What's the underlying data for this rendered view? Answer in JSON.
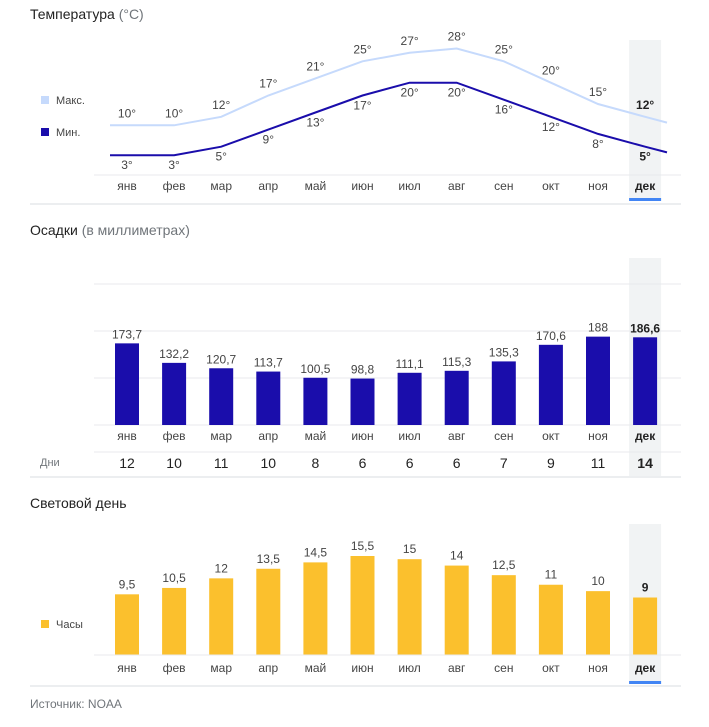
{
  "colors": {
    "max_line": "#c6dafc",
    "min_line": "#1a0dab",
    "precip_bar": "#1a0dab",
    "daylight_bar": "#fbc02d",
    "highlight_band": "#f1f3f4",
    "selected_underline": "#4285f4",
    "grid": "#e8eaed"
  },
  "selected_index": 11,
  "temperature": {
    "title": "Температура",
    "title_unit": "(°C)",
    "legend_max": "Макс.",
    "legend_min": "Мин."
  },
  "precipitation": {
    "title": "Осадки",
    "title_unit": "(в миллиметрах)",
    "days_label": "Дни",
    "days": [
      "12",
      "10",
      "11",
      "10",
      "8",
      "6",
      "6",
      "6",
      "7",
      "9",
      "11",
      "14"
    ]
  },
  "daylight": {
    "title": "Световой день",
    "legend": "Часы"
  },
  "source": "Источник: NOAA",
  "chart_data": [
    {
      "type": "line",
      "categories": [
        "янв",
        "фев",
        "мар",
        "апр",
        "май",
        "июн",
        "июл",
        "авг",
        "сен",
        "окт",
        "ноя",
        "дек"
      ],
      "series": [
        {
          "name": "Макс.",
          "values": [
            10,
            10,
            12,
            17,
            21,
            25,
            27,
            28,
            25,
            20,
            15,
            12
          ],
          "labels": [
            "10°",
            "10°",
            "12°",
            "17°",
            "21°",
            "25°",
            "27°",
            "28°",
            "25°",
            "20°",
            "15°",
            "12°"
          ]
        },
        {
          "name": "Мин.",
          "values": [
            3,
            3,
            5,
            9,
            13,
            17,
            20,
            20,
            16,
            12,
            8,
            5
          ],
          "labels": [
            "3°",
            "3°",
            "5°",
            "9°",
            "13°",
            "17°",
            "20°",
            "20°",
            "16°",
            "12°",
            "8°",
            "5°"
          ]
        }
      ],
      "title": "Температура (°C)",
      "ylim": [
        0,
        30
      ]
    },
    {
      "type": "bar",
      "categories": [
        "янв",
        "фев",
        "мар",
        "апр",
        "май",
        "июн",
        "июл",
        "авг",
        "сен",
        "окт",
        "ноя",
        "дек"
      ],
      "values": [
        173.7,
        132.2,
        120.7,
        113.7,
        100.5,
        98.8,
        111.1,
        115.3,
        135.3,
        170.6,
        188,
        186.6
      ],
      "labels": [
        "173,7",
        "132,2",
        "120,7",
        "113,7",
        "100,5",
        "98,8",
        "111,1",
        "115,3",
        "135,3",
        "170,6",
        "188",
        "186,6"
      ],
      "title": "Осадки (в миллиметрах)",
      "ylim": [
        0,
        280
      ],
      "grid": true
    },
    {
      "type": "bar",
      "categories": [
        "янв",
        "фев",
        "мар",
        "апр",
        "май",
        "июн",
        "июл",
        "авг",
        "сен",
        "окт",
        "ноя",
        "дек"
      ],
      "values": [
        9.5,
        10.5,
        12,
        13.5,
        14.5,
        15.5,
        15,
        14,
        12.5,
        11,
        10,
        9
      ],
      "labels": [
        "9,5",
        "10,5",
        "12",
        "13,5",
        "14,5",
        "15,5",
        "15",
        "14",
        "12,5",
        "11",
        "10",
        "9"
      ],
      "series_name": "Часы",
      "title": "Световой день",
      "ylim": [
        0,
        16.8
      ]
    }
  ]
}
